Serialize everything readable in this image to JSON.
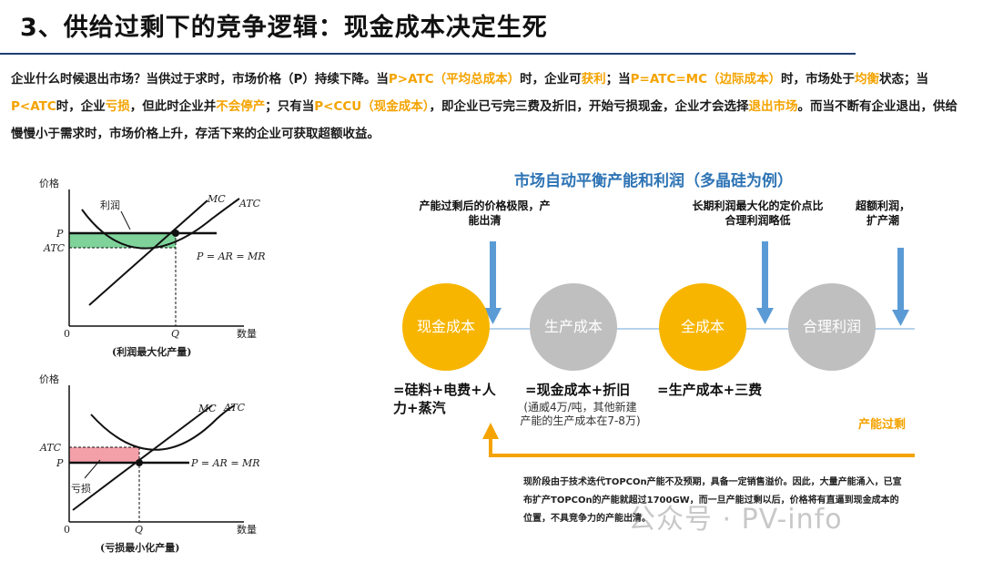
{
  "title": "3、供给过剩下的竞争逻辑：现金成本决定生死",
  "intro": {
    "s1": "企业什么时候退出市场？当供过于求时，市场价格（P）持续下降。当",
    "h1": "P>ATC（平均总成本）",
    "s2": "时，企业可",
    "h2": "获利",
    "s3": "；当",
    "h3": "P=ATC=MC（边际成本）",
    "s4": "时，市场处于",
    "h4": "均衡",
    "s5": "状态；当",
    "h5": "P<ATC",
    "s6": "时，企业",
    "h6": "亏损",
    "s7": "，但此时企业并",
    "h7": "不会停产",
    "s8": "；只有当",
    "h8": "P<CCU（现金成本）",
    "s9": "，即企业已亏完三费及折旧，开始亏损现金，企业才会选择",
    "h9": "退出市场",
    "s10": "。而当不断有企业退出，供给慢慢小于需求时，市场价格上升，存活下来的企业可获取超额收益。"
  },
  "graph1": {
    "y_label": "价格",
    "x_label": "数量",
    "origin": "0",
    "profit_label": "利润",
    "mc": "MC",
    "atc": "ATC",
    "p": "P",
    "atc_axis": "ATC",
    "demand": "P = AR = MR",
    "q": "Q",
    "caption": "(利润最大化产量)"
  },
  "graph2": {
    "y_label": "价格",
    "x_label": "数量",
    "origin": "0",
    "loss_label": "亏损",
    "mc": "MC",
    "atc": "ATC",
    "p": "P",
    "atc_axis": "ATC",
    "demand": "P = AR = MR",
    "q": "Q",
    "caption": "(亏损最小化产量)"
  },
  "diagram": {
    "title": "市场自动平衡产能和利润（多晶硅为例）",
    "ann1": "产能过剩后的价格极限，产能出清",
    "ann2": "长期利润最大化的定价点比合理利润略低",
    "ann3": "超额利润，扩产潮",
    "circles": [
      "现金成本",
      "生产成本",
      "全成本",
      "合理利润"
    ],
    "f1": "=硅料+电费+人力+蒸汽",
    "f2": "=现金成本+折旧",
    "f2_note": "(通威4万/吨，其他新建产能的生产成本在7-8万)",
    "f3": "=生产成本+三费",
    "overcap": "产能过剩",
    "bottom_note": "现阶段由于技术迭代TOPCOn产能不及预期，具备一定销售溢价。因此，大量产能涌入，已宣布扩产TOPCOn的产能就超过1700GW，而一旦产能过剩以后，价格将有直逼到现金成本的位置，不具竞争力的产能出清。",
    "watermark": "公众号 · PV-info"
  },
  "colors": {
    "accent": "#f4a300",
    "circle_yellow": "#f7b500",
    "circle_gray": "#bfbfbf",
    "arrow_blue": "#5b9bd5",
    "title_blue": "#2e74b5",
    "profit_green": "#7fd39a",
    "loss_red": "#f4a0a8"
  }
}
